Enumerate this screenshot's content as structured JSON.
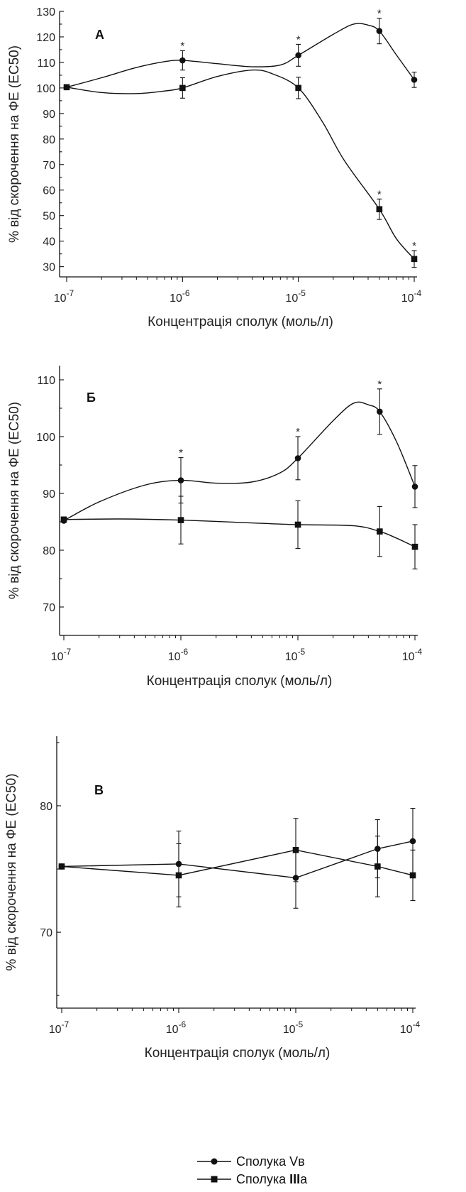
{
  "chart_data": [
    {
      "type": "line",
      "panel_label": "А",
      "xlabel": "Концентрація сполук (моль/л)",
      "ylabel": "% від скорочення на ФЕ (EC50)",
      "xscale": "log",
      "xlim": [
        1e-07,
        0.0001
      ],
      "ylim": [
        26,
        130
      ],
      "yticks": [
        30,
        40,
        50,
        60,
        70,
        80,
        90,
        100,
        110,
        120,
        130
      ],
      "xticks": [
        {
          "base": "10",
          "exp": "-7",
          "value": 1e-07
        },
        {
          "base": "10",
          "exp": "-6",
          "value": 1e-06
        },
        {
          "base": "10",
          "exp": "-5",
          "value": 1e-05
        },
        {
          "base": "10",
          "exp": "-4",
          "value": 0.0001
        }
      ],
      "series": [
        {
          "name": "Сполука Vв",
          "marker": "circle",
          "x": [
            1e-07,
            1e-06,
            1e-05,
            5e-05,
            0.0001
          ],
          "y": [
            100.3,
            110.8,
            112.8,
            122.3,
            103.2
          ],
          "err": [
            0,
            3.8,
            4.3,
            5.0,
            3.0
          ],
          "stars": [
            false,
            true,
            true,
            true,
            false
          ],
          "curve": [
            [
              1e-07,
              100.3
            ],
            [
              2e-07,
              104.0
            ],
            [
              4e-07,
              108.0
            ],
            [
              7e-07,
              110.3
            ],
            [
              1e-06,
              110.8
            ],
            [
              2e-06,
              109.5
            ],
            [
              4e-06,
              108.3
            ],
            [
              7e-06,
              109.0
            ],
            [
              1e-05,
              112.8
            ],
            [
              2e-05,
              121.0
            ],
            [
              3e-05,
              125.0
            ],
            [
              4e-05,
              124.6
            ],
            [
              5e-05,
              122.3
            ],
            [
              7e-05,
              113.0
            ],
            [
              0.0001,
              103.2
            ]
          ]
        },
        {
          "name": "Сполука IIIа",
          "marker": "square",
          "x": [
            1e-07,
            1e-06,
            1e-05,
            5e-05,
            0.0001
          ],
          "y": [
            100.3,
            100.0,
            100.0,
            52.5,
            33.0
          ],
          "err": [
            0,
            4.0,
            4.2,
            4.0,
            3.3
          ],
          "stars": [
            false,
            false,
            false,
            true,
            true
          ],
          "curve": [
            [
              1e-07,
              100.3
            ],
            [
              2e-07,
              98.2
            ],
            [
              4e-07,
              97.8
            ],
            [
              7e-07,
              98.8
            ],
            [
              1e-06,
              100.0
            ],
            [
              2e-06,
              104.5
            ],
            [
              4e-06,
              107.0
            ],
            [
              6e-06,
              105.5
            ],
            [
              1e-05,
              100.0
            ],
            [
              1.6e-05,
              87.0
            ],
            [
              2.5e-05,
              71.5
            ],
            [
              5e-05,
              52.5
            ],
            [
              7e-05,
              41.0
            ],
            [
              0.0001,
              33.0
            ]
          ]
        }
      ]
    },
    {
      "type": "line",
      "panel_label": "Б",
      "xlabel": "Концентрація сполук (моль/л)",
      "ylabel": "% від скорочення на ФЕ (EC50)",
      "xscale": "log",
      "xlim": [
        1e-07,
        0.0001
      ],
      "ylim": [
        65,
        112.5
      ],
      "yticks": [
        70,
        80,
        90,
        100,
        110
      ],
      "xticks": [
        {
          "base": "10",
          "exp": "-7",
          "value": 1e-07
        },
        {
          "base": "10",
          "exp": "-6",
          "value": 1e-06
        },
        {
          "base": "10",
          "exp": "-5",
          "value": 1e-05
        },
        {
          "base": "10",
          "exp": "-4",
          "value": 0.0001
        }
      ],
      "series": [
        {
          "name": "Сполука Vв",
          "marker": "circle",
          "x": [
            1e-07,
            1e-06,
            1e-05,
            5e-05,
            0.0001
          ],
          "y": [
            85.2,
            92.3,
            96.2,
            104.4,
            91.2
          ],
          "err": [
            0,
            4.0,
            3.8,
            4.0,
            3.7
          ],
          "stars": [
            false,
            true,
            true,
            true,
            false
          ],
          "curve": [
            [
              1e-07,
              85.2
            ],
            [
              2e-07,
              88.5
            ],
            [
              5e-07,
              91.5
            ],
            [
              1e-06,
              92.3
            ],
            [
              2e-06,
              91.8
            ],
            [
              4e-06,
              92.0
            ],
            [
              7e-06,
              93.6
            ],
            [
              1e-05,
              96.2
            ],
            [
              2e-05,
              102.8
            ],
            [
              3e-05,
              105.9
            ],
            [
              4e-05,
              105.6
            ],
            [
              5e-05,
              104.4
            ],
            [
              7e-05,
              99.0
            ],
            [
              0.0001,
              91.2
            ]
          ]
        },
        {
          "name": "Сполука IIIа",
          "marker": "square",
          "x": [
            1e-07,
            1e-06,
            1e-05,
            5e-05,
            0.0001
          ],
          "y": [
            85.4,
            85.3,
            84.5,
            83.3,
            80.6
          ],
          "err": [
            0,
            4.2,
            4.2,
            4.4,
            3.9
          ],
          "stars": [
            false,
            false,
            false,
            false,
            false
          ],
          "curve": [
            [
              1e-07,
              85.4
            ],
            [
              3e-07,
              85.5
            ],
            [
              1e-06,
              85.3
            ],
            [
              4e-06,
              84.8
            ],
            [
              1e-05,
              84.5
            ],
            [
              3e-05,
              84.3
            ],
            [
              5e-05,
              83.3
            ],
            [
              7e-05,
              82.1
            ],
            [
              0.0001,
              80.6
            ]
          ]
        }
      ]
    },
    {
      "type": "line",
      "panel_label": "В",
      "xlabel": "Концентрація сполук (моль/л)",
      "ylabel": "% від скорочення на ФЕ (EC50)",
      "xscale": "log",
      "xlim": [
        1e-07,
        0.0001
      ],
      "ylim": [
        64,
        85.5
      ],
      "yticks": [
        70,
        80
      ],
      "xticks": [
        {
          "base": "10",
          "exp": "-7",
          "value": 1e-07
        },
        {
          "base": "10",
          "exp": "-6",
          "value": 1e-06
        },
        {
          "base": "10",
          "exp": "-5",
          "value": 1e-05
        },
        {
          "base": "10",
          "exp": "-4",
          "value": 0.0001
        }
      ],
      "series": [
        {
          "name": "Сполука Vв",
          "marker": "circle",
          "x": [
            1e-07,
            1e-06,
            1e-05,
            5e-05,
            0.0001
          ],
          "y": [
            75.2,
            75.4,
            74.3,
            76.6,
            77.2
          ],
          "err": [
            0,
            2.6,
            2.4,
            2.3,
            2.6
          ],
          "stars": [
            false,
            false,
            false,
            false,
            false
          ],
          "curve": null
        },
        {
          "name": "Сполука IIIа",
          "marker": "square",
          "x": [
            1e-07,
            1e-06,
            1e-05,
            5e-05,
            0.0001
          ],
          "y": [
            75.2,
            74.5,
            76.5,
            75.2,
            74.5
          ],
          "err": [
            0,
            2.5,
            2.5,
            2.4,
            2.0
          ],
          "stars": [
            false,
            false,
            false,
            false,
            false
          ],
          "curve": null
        }
      ]
    }
  ],
  "legend": {
    "items": [
      {
        "label": "Сполука Vв",
        "marker": "circle"
      },
      {
        "label": "Сполука ",
        "bold": "III",
        "suffix": "а",
        "marker": "square"
      }
    ]
  }
}
